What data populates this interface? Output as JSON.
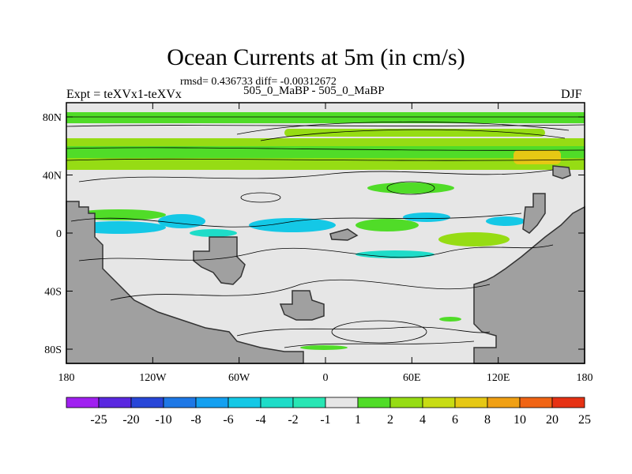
{
  "title": "Ocean Currents at 5m (in cm/s)",
  "stats": "rmsd= 0.436733 diff= -0.00312672",
  "left_label": "Expt = teXVx1-teXVx",
  "center_label": "505_0_MaBP - 505_0_MaBP",
  "right_label": "DJF",
  "map": {
    "lon_ticks": [
      "180",
      "120W",
      "60W",
      "0",
      "60E",
      "120E",
      "180"
    ],
    "lat_ticks": [
      "80N",
      "40N",
      "0",
      "40S",
      "80S"
    ],
    "land_color": "#a0a0a0",
    "background_color": "#e6e6e6"
  },
  "colorbar": {
    "labels": [
      "-25",
      "-20",
      "-10",
      "-8",
      "-6",
      "-4",
      "-2",
      "-1",
      "1",
      "2",
      "4",
      "6",
      "8",
      "10",
      "20",
      "25"
    ],
    "colors": [
      "#a020f0",
      "#5a28e0",
      "#2846d8",
      "#1e78e6",
      "#14a0f0",
      "#14c8e6",
      "#1edcc8",
      "#28e6b4",
      "#e6e6e6",
      "#50dc28",
      "#96dc14",
      "#c8dc14",
      "#e6c814",
      "#f0a014",
      "#f06414",
      "#e63214"
    ]
  }
}
